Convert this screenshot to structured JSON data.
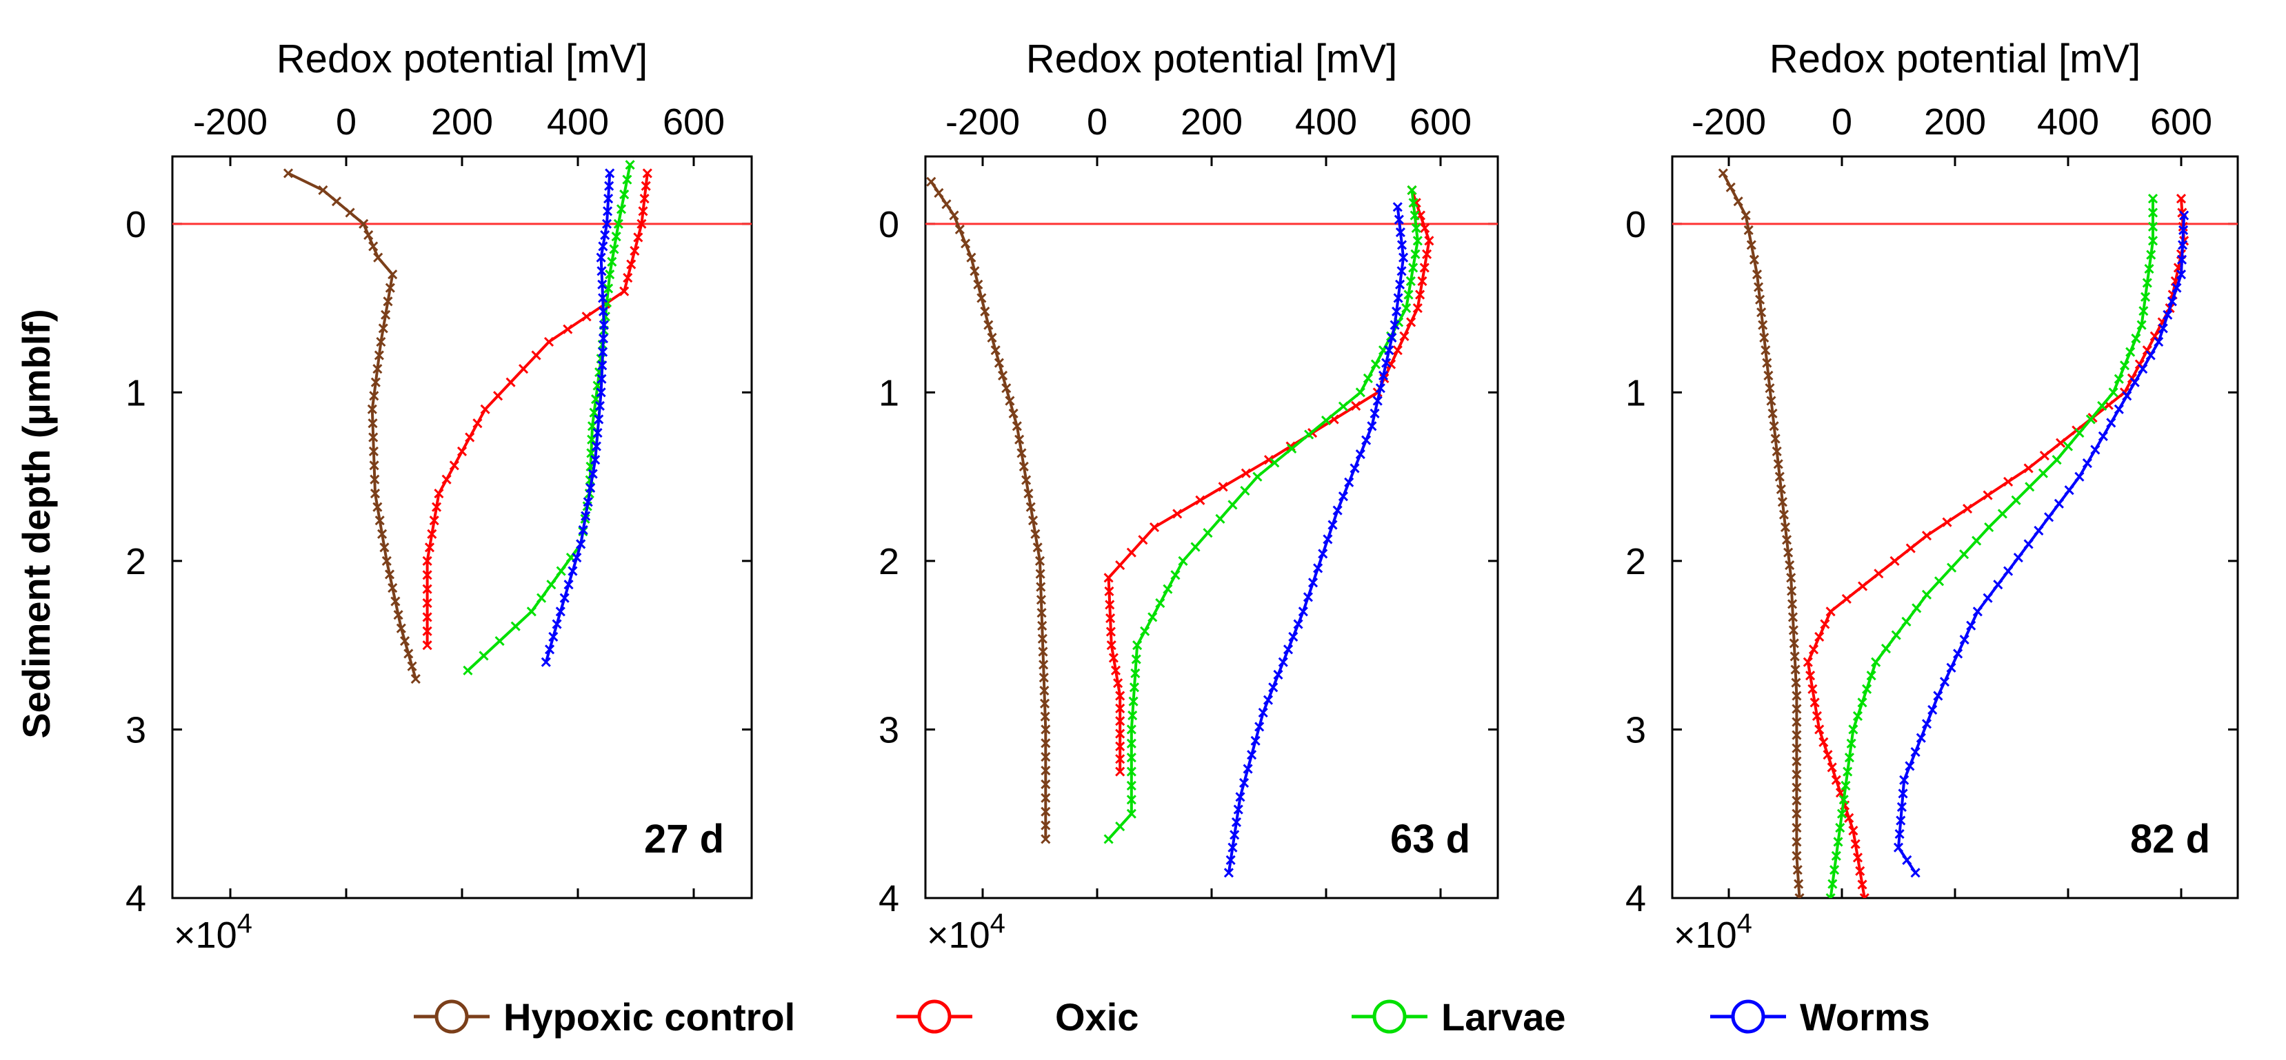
{
  "figure": {
    "ylabel": "Sediment depth (µmblf)",
    "xlabel": "Redox potential [mV]",
    "exponent_label": "×10",
    "exponent_power": "4",
    "reference_depth": 0
  },
  "legend": {
    "placement": "bottom-center",
    "entries": [
      {
        "name": "Hypoxic control",
        "color": "#7B3F1A"
      },
      {
        "name": "Oxic",
        "color": "#FF0000"
      },
      {
        "name": "Larvae",
        "color": "#00E000"
      },
      {
        "name": "Worms",
        "color": "#0000FF"
      }
    ]
  },
  "colors": {
    "reference_line": "#FF3333",
    "axis": "#000000"
  },
  "chart_data": [
    {
      "type": "line",
      "panel_label": "27 d",
      "xlabel": "Redox potential [mV]",
      "ylabel": "Sediment depth (µmblf)",
      "xlim": [
        -300,
        700
      ],
      "ylim": [
        4,
        -0.4
      ],
      "xticks": [
        -200,
        0,
        200,
        400,
        600
      ],
      "yticks": [
        0,
        1,
        2,
        3,
        4
      ],
      "series": [
        {
          "name": "Hypoxic control",
          "x": [
            -100,
            -40,
            30,
            55,
            80,
            60,
            45,
            50,
            70,
            95,
            120
          ],
          "y": [
            -0.3,
            -0.2,
            0,
            0.2,
            0.3,
            0.7,
            1.1,
            1.6,
            2.0,
            2.4,
            2.7
          ]
        },
        {
          "name": "Oxic",
          "x": [
            520,
            510,
            480,
            350,
            240,
            160,
            140,
            140
          ],
          "y": [
            -0.3,
            0.0,
            0.4,
            0.7,
            1.1,
            1.6,
            2.0,
            2.5
          ]
        },
        {
          "name": "Larvae",
          "x": [
            490,
            470,
            455,
            440,
            425,
            420,
            405,
            320,
            210
          ],
          "y": [
            -0.35,
            0.0,
            0.3,
            0.8,
            1.2,
            1.6,
            1.9,
            2.3,
            2.65
          ]
        },
        {
          "name": "Worms",
          "x": [
            455,
            450,
            440,
            445,
            440,
            430,
            405,
            370,
            345
          ],
          "y": [
            -0.3,
            0.0,
            0.2,
            0.6,
            1.0,
            1.4,
            1.9,
            2.3,
            2.6
          ]
        }
      ]
    },
    {
      "type": "line",
      "panel_label": "63 d",
      "xlabel": "Redox potential [mV]",
      "ylabel": "Sediment depth (µmblf)",
      "xlim": [
        -300,
        700
      ],
      "ylim": [
        4,
        -0.4
      ],
      "xticks": [
        -200,
        0,
        200,
        400,
        600
      ],
      "yticks": [
        0,
        1,
        2,
        3,
        4
      ],
      "series": [
        {
          "name": "Hypoxic control",
          "x": [
            -290,
            -250,
            -220,
            -190,
            -140,
            -100,
            -90,
            -90
          ],
          "y": [
            -0.25,
            -0.05,
            0.2,
            0.6,
            1.2,
            2.0,
            3.0,
            3.65
          ]
        },
        {
          "name": "Oxic",
          "x": [
            550,
            580,
            560,
            490,
            300,
            100,
            20,
            25,
            40,
            40
          ],
          "y": [
            -0.2,
            0.1,
            0.5,
            1.0,
            1.4,
            1.8,
            2.1,
            2.5,
            2.8,
            3.25
          ]
        },
        {
          "name": "Larvae",
          "x": [
            550,
            560,
            540,
            460,
            280,
            150,
            70,
            60,
            60,
            20
          ],
          "y": [
            -0.2,
            0.1,
            0.5,
            1.0,
            1.5,
            2.0,
            2.5,
            3.0,
            3.5,
            3.65
          ]
        },
        {
          "name": "Worms",
          "x": [
            525,
            535,
            520,
            480,
            420,
            360,
            290,
            250,
            230
          ],
          "y": [
            -0.1,
            0.2,
            0.6,
            1.2,
            1.7,
            2.3,
            2.9,
            3.4,
            3.85
          ]
        }
      ]
    },
    {
      "type": "line",
      "panel_label": "82 d",
      "xlabel": "Redox potential [mV]",
      "ylabel": "Sediment depth (µmblf)",
      "xlim": [
        -300,
        700
      ],
      "ylim": [
        4,
        -0.4
      ],
      "xticks": [
        -200,
        0,
        200,
        400,
        600
      ],
      "yticks": [
        0,
        1,
        2,
        3,
        4
      ],
      "series": [
        {
          "name": "Hypoxic control",
          "x": [
            -210,
            -170,
            -150,
            -130,
            -110,
            -90,
            -80,
            -80,
            -80,
            -75
          ],
          "y": [
            -0.3,
            -0.05,
            0.3,
            0.9,
            1.5,
            2.1,
            2.8,
            3.5,
            3.75,
            4.0
          ]
        },
        {
          "name": "Oxic",
          "x": [
            600,
            605,
            580,
            500,
            330,
            150,
            -20,
            -60,
            -40,
            20,
            40
          ],
          "y": [
            -0.15,
            0.1,
            0.5,
            1.0,
            1.45,
            1.85,
            2.3,
            2.6,
            3.0,
            3.6,
            4.0
          ]
        },
        {
          "name": "Larvae",
          "x": [
            550,
            550,
            530,
            480,
            380,
            260,
            150,
            60,
            20,
            0,
            -20
          ],
          "y": [
            -0.15,
            0.1,
            0.6,
            1.0,
            1.4,
            1.8,
            2.2,
            2.6,
            3.0,
            3.5,
            4.0
          ]
        },
        {
          "name": "Worms",
          "x": [
            605,
            600,
            560,
            490,
            420,
            330,
            240,
            170,
            110,
            100,
            130
          ],
          "y": [
            -0.05,
            0.3,
            0.7,
            1.1,
            1.5,
            1.9,
            2.3,
            2.8,
            3.3,
            3.7,
            3.85
          ]
        }
      ]
    }
  ]
}
